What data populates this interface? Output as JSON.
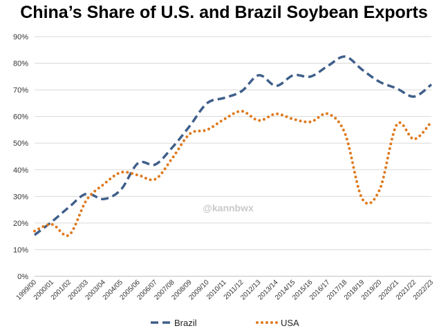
{
  "chart_data": {
    "type": "line",
    "title": "China’s Share of U.S. and Brazil Soybean Exports",
    "xlabel": "",
    "ylabel": "",
    "ylim": [
      0,
      90
    ],
    "ytick_step": 10,
    "y_format": "percent",
    "grid": true,
    "legend_position": "bottom",
    "categories": [
      "1999/00",
      "2000/01",
      "2001/02",
      "2002/03",
      "2003/04",
      "2004/05",
      "2005/06",
      "2006/07",
      "2007/08",
      "2008/09",
      "2009/10",
      "2010/11",
      "2011/12",
      "2012/13",
      "2013/14",
      "2014/15",
      "2015/16",
      "2016/17",
      "2017/18",
      "2018/19",
      "2019/20",
      "2020/21",
      "2021/22",
      "2022/23"
    ],
    "series": [
      {
        "name": "Brazil",
        "color": "#3f5f8a",
        "style": "dashed",
        "values": [
          15.5,
          20.5,
          26,
          31,
          29,
          32.5,
          42.5,
          42,
          48.5,
          56.5,
          65,
          67,
          69.5,
          75.5,
          71.5,
          75.5,
          75,
          79,
          82.5,
          77.5,
          73,
          70.5,
          67.5,
          72
        ]
      },
      {
        "name": "USA",
        "color": "#de7a1e",
        "style": "dotted",
        "values": [
          17,
          19.5,
          15.5,
          28.5,
          34.5,
          39,
          38,
          36.5,
          44.5,
          53.5,
          55,
          59,
          62,
          58.5,
          61,
          59,
          58,
          61,
          53.5,
          29,
          32.5,
          57,
          51.5,
          58
        ]
      }
    ]
  },
  "watermark": "@kannbwx"
}
